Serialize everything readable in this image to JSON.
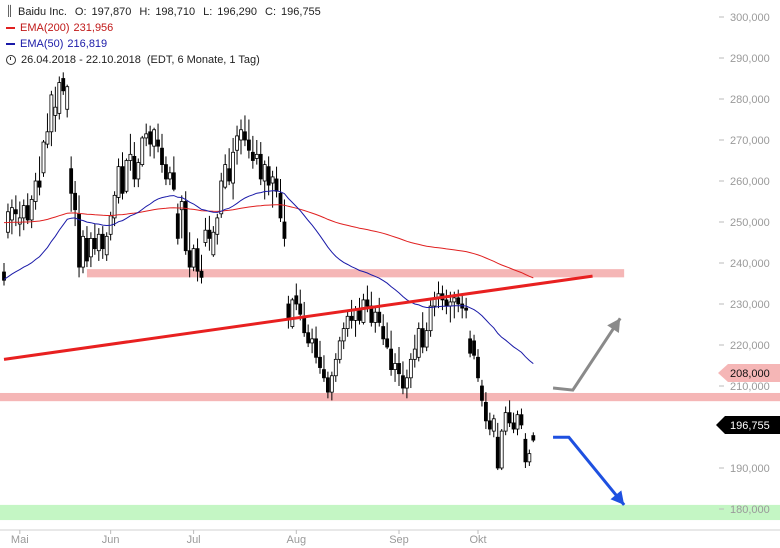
{
  "header": {
    "icon": "candlestick-icon",
    "name": "Baidu Inc.",
    "ohlc": [
      {
        "k": "O:",
        "v": "197,870"
      },
      {
        "k": "H:",
        "v": "198,710"
      },
      {
        "k": "L:",
        "v": "196,290"
      },
      {
        "k": "C:",
        "v": "196,755"
      }
    ]
  },
  "legend": [
    {
      "name": "EMA(200)",
      "value": "231,956",
      "color": "#e02020"
    },
    {
      "name": "EMA(50)",
      "value": "216,819",
      "color": "#1a1aa8"
    }
  ],
  "range_text": "26.04.2018 - 22.10.2018",
  "range_meta": "(EDT, 6 Monate, 1 Tag)",
  "price_badges": {
    "level": "208,000",
    "last": "196,755"
  },
  "colors": {
    "up": "#ffffff",
    "down": "#000000",
    "resistance_band": "#f5b6b6",
    "target_band": "#c4f6c4",
    "trendline": "#e82020",
    "up_arrow": "#8a8a8a",
    "down_arrow": "#1e50e0"
  },
  "chart_data": {
    "type": "candlestick",
    "ylim": [
      177000,
      303000
    ],
    "yticks": [
      "180,000",
      "190,000",
      "200,000",
      "210,000",
      "220,000",
      "230,000",
      "240,000",
      "250,000",
      "260,000",
      "270,000",
      "280,000",
      "290,000",
      "300,000"
    ],
    "ytick_values": [
      180000,
      190000,
      200000,
      210000,
      220000,
      230000,
      240000,
      250000,
      260000,
      270000,
      280000,
      290000,
      300000
    ],
    "xticks": [
      {
        "label": "Mai",
        "day": 4
      },
      {
        "label": "Jun",
        "day": 27
      },
      {
        "label": "Jul",
        "day": 48
      },
      {
        "label": "Aug",
        "day": 74
      },
      {
        "label": "Sep",
        "day": 100
      },
      {
        "label": "Okt",
        "day": 120
      }
    ],
    "bands": [
      {
        "name": "resistance",
        "from": 236500,
        "to": 238500,
        "day_start": 21,
        "day_end": 157
      },
      {
        "name": "support",
        "from": 206300,
        "to": 208300,
        "day_start": 0,
        "day_end": 185
      },
      {
        "name": "target",
        "from": 177300,
        "to": 181000,
        "day_start": 0,
        "day_end": 185
      }
    ],
    "trendline": {
      "from": [
        0,
        216500
      ],
      "to": [
        149,
        236800
      ]
    },
    "arrows": [
      {
        "name": "up-scenario",
        "points": [
          [
            139,
            209500
          ],
          [
            144,
            209000
          ],
          [
            156,
            226500
          ]
        ]
      },
      {
        "name": "down-scenario",
        "points": [
          [
            139,
            197500
          ],
          [
            143,
            197500
          ],
          [
            157,
            181000
          ]
        ]
      }
    ],
    "candles": [
      [
        0,
        237800,
        240000,
        234500,
        235800
      ],
      [
        1,
        247500,
        254500,
        246000,
        252500
      ],
      [
        2,
        250500,
        255500,
        247000,
        253500
      ],
      [
        3,
        253000,
        256500,
        249000,
        252000
      ],
      [
        4,
        249500,
        255000,
        246500,
        251000
      ],
      [
        5,
        251000,
        255500,
        248000,
        254000
      ],
      [
        6,
        254000,
        257000,
        249500,
        250500
      ],
      [
        7,
        250500,
        256500,
        248500,
        255500
      ],
      [
        8,
        255000,
        262000,
        253000,
        260000
      ],
      [
        9,
        260000,
        266000,
        256500,
        258500
      ],
      [
        10,
        262000,
        270000,
        261000,
        269500
      ],
      [
        11,
        269000,
        276500,
        268000,
        272000
      ],
      [
        12,
        272000,
        282000,
        268500,
        281000
      ],
      [
        13,
        276000,
        283000,
        272000,
        278000
      ],
      [
        14,
        276500,
        285500,
        275000,
        284000
      ],
      [
        15,
        285000,
        286500,
        281000,
        282000
      ],
      [
        16,
        277500,
        283500,
        275500,
        283000
      ],
      [
        17,
        263000,
        266000,
        252500,
        257000
      ],
      [
        18,
        257000,
        260000,
        249000,
        253000
      ],
      [
        19,
        252000,
        256500,
        236500,
        239000
      ],
      [
        20,
        239000,
        248000,
        237500,
        246500
      ],
      [
        21,
        246000,
        249000,
        239000,
        240500
      ],
      [
        22,
        241500,
        247500,
        239000,
        246000
      ],
      [
        23,
        246000,
        249500,
        242000,
        243500
      ],
      [
        24,
        243000,
        248500,
        240500,
        247000
      ],
      [
        25,
        247000,
        249000,
        241000,
        243500
      ],
      [
        26,
        242000,
        247500,
        240500,
        246500
      ],
      [
        27,
        247000,
        252500,
        245500,
        251500
      ],
      [
        28,
        251000,
        257500,
        249000,
        256500
      ],
      [
        29,
        256000,
        265500,
        254500,
        263500
      ],
      [
        30,
        263500,
        267000,
        255500,
        257000
      ],
      [
        31,
        257500,
        265500,
        257000,
        265000
      ],
      [
        32,
        265000,
        271500,
        262500,
        266500
      ],
      [
        33,
        266000,
        269500,
        258500,
        260500
      ],
      [
        34,
        260500,
        265500,
        258500,
        264500
      ],
      [
        35,
        264000,
        271000,
        263500,
        270500
      ],
      [
        36,
        270500,
        274000,
        268500,
        271500
      ],
      [
        37,
        272000,
        273500,
        266000,
        269000
      ],
      [
        38,
        268500,
        273000,
        265500,
        272500
      ],
      [
        39,
        270000,
        274000,
        267000,
        268500
      ],
      [
        40,
        268000,
        271500,
        262000,
        264000
      ],
      [
        41,
        264000,
        266000,
        259000,
        260500
      ],
      [
        42,
        260500,
        263500,
        259000,
        262000
      ],
      [
        43,
        262000,
        266000,
        257500,
        258000
      ],
      [
        44,
        252000,
        254500,
        244500,
        246000
      ],
      [
        45,
        253000,
        256500,
        246000,
        255000
      ],
      [
        46,
        255000,
        257500,
        242000,
        243000
      ],
      [
        47,
        243000,
        247500,
        236500,
        239000
      ],
      [
        48,
        239000,
        244500,
        238000,
        243500
      ],
      [
        49,
        243500,
        246000,
        235500,
        238000
      ],
      [
        50,
        238000,
        242000,
        235000,
        236500
      ],
      [
        51,
        245000,
        251000,
        244000,
        248000
      ],
      [
        52,
        248000,
        251500,
        243000,
        246000
      ],
      [
        53,
        242000,
        249000,
        241500,
        247500
      ],
      [
        54,
        247000,
        252000,
        244500,
        251000
      ],
      [
        55,
        252000,
        262000,
        251000,
        260000
      ],
      [
        56,
        258500,
        266500,
        258000,
        264000
      ],
      [
        57,
        263000,
        268000,
        259000,
        260000
      ],
      [
        58,
        259500,
        270500,
        255500,
        267000
      ],
      [
        59,
        267500,
        273500,
        264000,
        271000
      ],
      [
        60,
        270000,
        275000,
        266500,
        272500
      ],
      [
        61,
        272000,
        276000,
        268500,
        270000
      ],
      [
        62,
        270000,
        275000,
        265500,
        267500
      ],
      [
        63,
        267000,
        271000,
        263000,
        265000
      ],
      [
        64,
        265500,
        270000,
        264000,
        266500
      ],
      [
        65,
        266500,
        269500,
        259000,
        260500
      ],
      [
        66,
        260000,
        265000,
        255500,
        264000
      ],
      [
        67,
        263500,
        266000,
        256500,
        259000
      ],
      [
        68,
        259500,
        262500,
        253500,
        261000
      ],
      [
        69,
        260500,
        263500,
        256000,
        257500
      ],
      [
        70,
        257000,
        260500,
        250000,
        251000
      ],
      [
        71,
        250000,
        255500,
        244000,
        246000
      ],
      [
        72,
        230000,
        232000,
        224000,
        226500
      ],
      [
        73,
        224500,
        231500,
        224000,
        231000
      ],
      [
        74,
        232000,
        235000,
        228500,
        230000
      ],
      [
        75,
        230000,
        233500,
        226000,
        227500
      ],
      [
        76,
        227000,
        230500,
        222000,
        223000
      ],
      [
        77,
        223000,
        225000,
        219500,
        220500
      ],
      [
        78,
        220500,
        224000,
        218000,
        221500
      ],
      [
        79,
        221500,
        224500,
        215500,
        217000
      ],
      [
        80,
        217000,
        221000,
        213000,
        214500
      ],
      [
        81,
        214000,
        217500,
        211000,
        212000
      ],
      [
        82,
        212000,
        213500,
        207000,
        208500
      ],
      [
        83,
        208500,
        213500,
        206500,
        212500
      ],
      [
        84,
        212500,
        218000,
        211000,
        216500
      ],
      [
        85,
        216500,
        222000,
        215500,
        221000
      ],
      [
        86,
        221000,
        225500,
        219000,
        224000
      ],
      [
        87,
        224000,
        228500,
        222000,
        227000
      ],
      [
        88,
        227000,
        231000,
        224000,
        226000
      ],
      [
        89,
        226000,
        229500,
        222000,
        228500
      ],
      [
        90,
        228500,
        231500,
        225000,
        226000
      ],
      [
        91,
        225500,
        232500,
        225000,
        231000
      ],
      [
        92,
        231000,
        234500,
        228000,
        229500
      ],
      [
        93,
        229500,
        233000,
        224500,
        225500
      ],
      [
        94,
        225500,
        229500,
        223000,
        228000
      ],
      [
        95,
        228000,
        231500,
        224500,
        225500
      ],
      [
        96,
        224500,
        227500,
        220000,
        221500
      ],
      [
        97,
        221500,
        225500,
        219000,
        219500
      ],
      [
        98,
        219000,
        223500,
        212500,
        214000
      ],
      [
        99,
        214000,
        218000,
        211000,
        215500
      ],
      [
        100,
        215500,
        219500,
        210000,
        213000
      ],
      [
        101,
        212500,
        216000,
        208000,
        209500
      ],
      [
        102,
        209500,
        214000,
        207000,
        212000
      ],
      [
        103,
        212000,
        218000,
        209500,
        216500
      ],
      [
        104,
        216500,
        222500,
        214500,
        219000
      ],
      [
        105,
        217000,
        225500,
        216000,
        224000
      ],
      [
        106,
        224000,
        228000,
        218000,
        219500
      ],
      [
        107,
        219500,
        225500,
        218500,
        223500
      ],
      [
        108,
        223500,
        231000,
        222000,
        229500
      ],
      [
        109,
        229500,
        233000,
        227000,
        231500
      ],
      [
        110,
        231500,
        235500,
        229000,
        232500
      ],
      [
        111,
        232500,
        234500,
        228500,
        231000
      ],
      [
        112,
        231000,
        233500,
        227500,
        229500
      ],
      [
        113,
        229500,
        233000,
        225500,
        230500
      ],
      [
        114,
        230500,
        233000,
        226500,
        231500
      ],
      [
        115,
        231500,
        233500,
        228000,
        230000
      ],
      [
        116,
        230000,
        232500,
        226500,
        229000
      ],
      [
        117,
        229000,
        231500,
        226500,
        228500
      ],
      [
        118,
        221500,
        223500,
        217000,
        218000
      ],
      [
        119,
        221000,
        222500,
        216500,
        217500
      ],
      [
        120,
        217000,
        219000,
        211000,
        212000
      ],
      [
        121,
        210000,
        211500,
        205000,
        206500
      ],
      [
        122,
        206000,
        208500,
        199500,
        201500
      ],
      [
        123,
        201500,
        203500,
        198000,
        199500
      ],
      [
        124,
        199000,
        203000,
        197500,
        202000
      ],
      [
        125,
        197500,
        201000,
        189500,
        190000
      ],
      [
        126,
        190000,
        199500,
        189500,
        199000
      ],
      [
        127,
        199000,
        205000,
        198000,
        203500
      ],
      [
        128,
        203500,
        206500,
        200000,
        201000
      ],
      [
        129,
        201000,
        203500,
        198500,
        199500
      ],
      [
        130,
        199500,
        204000,
        198000,
        203000
      ],
      [
        131,
        203000,
        204500,
        199500,
        200500
      ],
      [
        132,
        197000,
        198500,
        190000,
        191500
      ],
      [
        133,
        191500,
        194500,
        190500,
        193500
      ],
      [
        134,
        197900,
        198700,
        196300,
        196800
      ]
    ]
  }
}
